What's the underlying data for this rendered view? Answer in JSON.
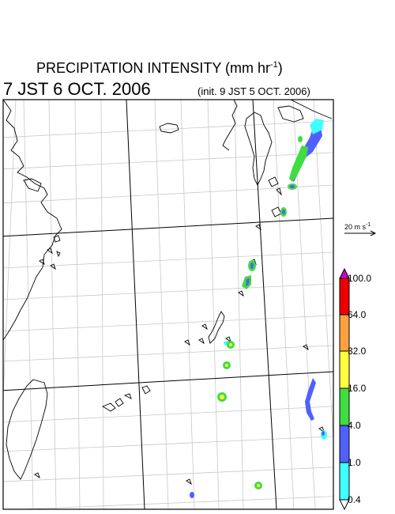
{
  "header": {
    "title": "PRECIPITATION INTENSITY (mm hr",
    "title_unit_exp": "-1",
    "title_close": ")",
    "valid_time": "7 JST 6 OCT. 2006",
    "init_time": "(init. 9 JST 5 OCT. 2006)"
  },
  "vector_legend": {
    "label": "20 m s",
    "label_exp": "-1"
  },
  "colorbar": {
    "levels": [
      "100.0",
      "64.0",
      "32.0",
      "16.0",
      "4.0",
      "1.0",
      "0.4"
    ],
    "colors": [
      "#cc00cc",
      "#ee0000",
      "#ffa040",
      "#ffff40",
      "#40dd40",
      "#5060ff",
      "#40ffff",
      "#ffffff"
    ]
  }
}
